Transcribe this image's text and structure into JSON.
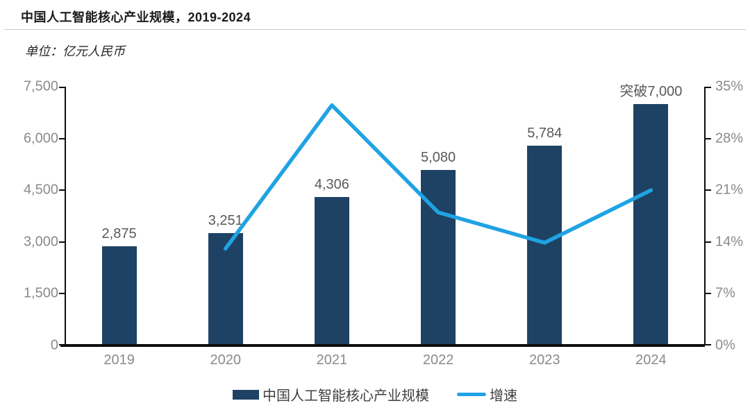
{
  "header": {
    "title": "中国人工智能核心产业规模，2019-2024",
    "unit_label": "单位：亿元人民币"
  },
  "colors": {
    "bar": "#1E4264",
    "line": "#1FA3E3",
    "axis": "#0d0d0d",
    "axis_text": "#8a8a8a",
    "data_label_text": "#595959"
  },
  "chart_data": {
    "type": "bar",
    "title": "中国人工智能核心产业规模，2019-2024",
    "unit": "亿元人民币",
    "categories": [
      "2019",
      "2020",
      "2021",
      "2022",
      "2023",
      "2024"
    ],
    "series": [
      {
        "name": "中国人工智能核心产业规模",
        "type": "bar",
        "axis": "left",
        "values": [
          2875,
          3251,
          4306,
          5080,
          5784,
          7000
        ],
        "data_labels": [
          "2,875",
          "3,251",
          "4,306",
          "5,080",
          "5,784",
          "突破7,000"
        ],
        "color": "#1E4264"
      },
      {
        "name": "增速",
        "type": "line",
        "axis": "right",
        "values": [
          null,
          13.1,
          32.5,
          18.0,
          13.9,
          21.0
        ],
        "color": "#1FA3E3"
      }
    ],
    "left_axis": {
      "min": 0,
      "max": 7500,
      "tick_labels": [
        "0",
        "1,500",
        "3,000",
        "4,500",
        "6,000",
        "7,500"
      ]
    },
    "right_axis": {
      "min": 0,
      "max": 35,
      "tick_labels": [
        "0%",
        "7%",
        "14%",
        "21%",
        "28%",
        "35%"
      ]
    },
    "grid": false,
    "legend_position": "bottom"
  }
}
